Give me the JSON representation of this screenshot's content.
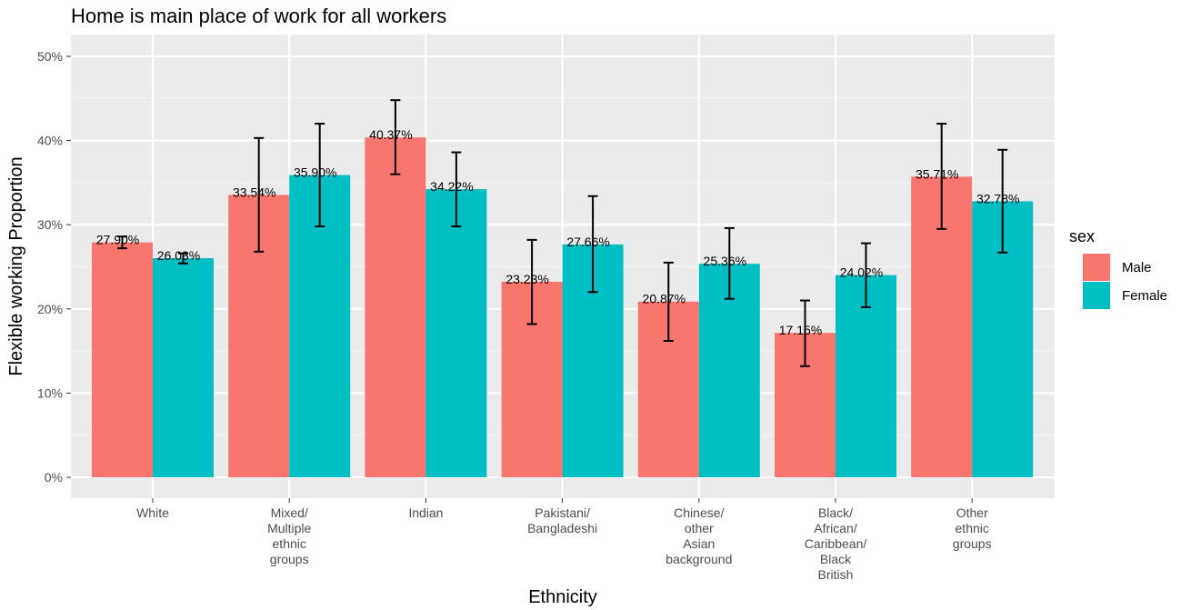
{
  "chart_data": {
    "type": "bar",
    "title": "Home is main place of work for all workers",
    "xlabel": "Ethnicity",
    "ylabel": "Flexible working Proportion",
    "ylim": [
      0,
      50
    ],
    "yticks": [
      "0%",
      "10%",
      "20%",
      "30%",
      "40%",
      "50%"
    ],
    "ytick_values": [
      0,
      10,
      20,
      30,
      40,
      50
    ],
    "grid": true,
    "legend_title": "sex",
    "legend_position": "right",
    "categories": [
      "White",
      "Mixed/\nMultiple\nethnic\ngroups",
      "Indian",
      "Pakistani/\nBangladeshi",
      "Chinese/\nother\nAsian\nbackground",
      "Black/\nAfrican/\nCaribbean/\nBlack\nBritish",
      "Other\nethnic\ngroups"
    ],
    "series": [
      {
        "name": "Male",
        "color": "#F8766D",
        "values": [
          27.9,
          33.54,
          40.37,
          23.23,
          20.87,
          17.15,
          35.71
        ],
        "labels": [
          "27.90%",
          "33.54%",
          "40.37%",
          "23.23%",
          "20.87%",
          "17.15%",
          "35.71%"
        ],
        "error_low": [
          27.2,
          26.8,
          36.0,
          18.2,
          16.2,
          13.2,
          29.5
        ],
        "error_high": [
          28.6,
          40.3,
          44.8,
          28.2,
          25.5,
          21.0,
          42.0
        ]
      },
      {
        "name": "Female",
        "color": "#00BFC4",
        "values": [
          26.03,
          35.9,
          34.22,
          27.66,
          25.36,
          24.02,
          32.78
        ],
        "labels": [
          "26.03%",
          "35.90%",
          "34.22%",
          "27.66%",
          "25.36%",
          "24.02%",
          "32.78%"
        ],
        "error_low": [
          25.4,
          29.8,
          29.8,
          22.0,
          21.2,
          20.2,
          26.7
        ],
        "error_high": [
          26.6,
          42.0,
          38.6,
          33.4,
          29.6,
          27.8,
          38.9
        ]
      }
    ]
  }
}
